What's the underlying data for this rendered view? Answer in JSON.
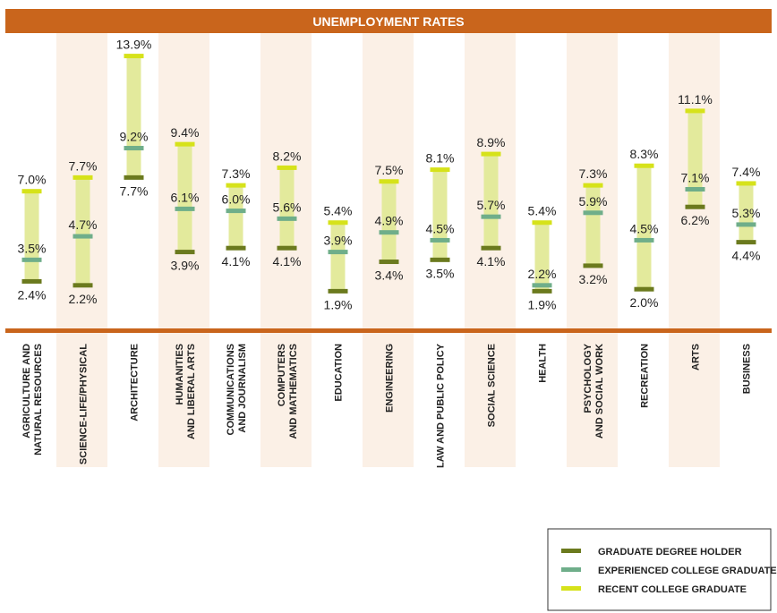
{
  "chart_data": {
    "type": "range",
    "title": "UNEMPLOYMENT RATES",
    "ylim": [
      0,
      15
    ],
    "categories": [
      [
        "AGRICULTURE AND",
        "NATURAL RESOURCES"
      ],
      [
        "SCIENCE-LIFE/PHYSICAL"
      ],
      [
        "ARCHITECTURE"
      ],
      [
        "HUMANITIES",
        "AND LIBERAL ARTS"
      ],
      [
        "COMMUNICATIONS",
        "AND JOURNALISM"
      ],
      [
        "COMPUTERS",
        "AND MATHEMATICS"
      ],
      [
        "EDUCATION"
      ],
      [
        "ENGINEERING"
      ],
      [
        "LAW AND PUBLIC POLICY"
      ],
      [
        "SOCIAL SCIENCE"
      ],
      [
        "HEALTH"
      ],
      [
        "PSYCHOLOGY",
        "AND SOCIAL WORK"
      ],
      [
        "RECREATION"
      ],
      [
        "ARTS"
      ],
      [
        "BUSINESS"
      ]
    ],
    "series": [
      {
        "name": "GRADUATE DEGREE HOLDER",
        "color": "#6b7a1e",
        "values": [
          2.4,
          2.2,
          7.7,
          3.9,
          4.1,
          4.1,
          1.9,
          3.4,
          3.5,
          4.1,
          1.9,
          3.2,
          2.0,
          6.2,
          4.4
        ],
        "labels": [
          "2.4%",
          "2.2%",
          "7.7%",
          "3.9%",
          "4.1%",
          "4.1%",
          "1.9%",
          "3.4%",
          "3.5%",
          "4.1%",
          "1.9%",
          "3.2%",
          "2.0%",
          "6.2%",
          "4.4%"
        ]
      },
      {
        "name": "EXPERIENCED COLLEGE GRADUATE",
        "color": "#6fae8a",
        "values": [
          3.5,
          4.7,
          9.2,
          6.1,
          6.0,
          5.6,
          3.9,
          4.9,
          4.5,
          5.7,
          2.2,
          5.9,
          4.5,
          7.1,
          5.3
        ],
        "labels": [
          "3.5%",
          "4.7%",
          "9.2%",
          "6.1%",
          "6.0%",
          "5.6%",
          "3.9%",
          "4.9%",
          "4.5%",
          "5.7%",
          "2.2%",
          "5.9%",
          "4.5%",
          "7.1%",
          "5.3%"
        ]
      },
      {
        "name": "RECENT COLLEGE GRADUATE",
        "color": "#d6e21a",
        "values": [
          7.0,
          7.7,
          13.9,
          9.4,
          7.3,
          8.2,
          5.4,
          7.5,
          8.1,
          8.9,
          5.4,
          7.3,
          8.3,
          11.1,
          7.4
        ],
        "labels": [
          "7.0%",
          "7.7%",
          "13.9%",
          "9.4%",
          "7.3%",
          "8.2%",
          "5.4%",
          "7.5%",
          "8.1%",
          "8.9%",
          "5.4%",
          "7.3%",
          "8.3%",
          "11.1%",
          "7.4%"
        ]
      }
    ],
    "legend_position": "bottom-right",
    "colors": {
      "title_bar": "#c9651c",
      "stripe": "#fbf0e6",
      "range_bar": "#e3ea9c"
    }
  }
}
